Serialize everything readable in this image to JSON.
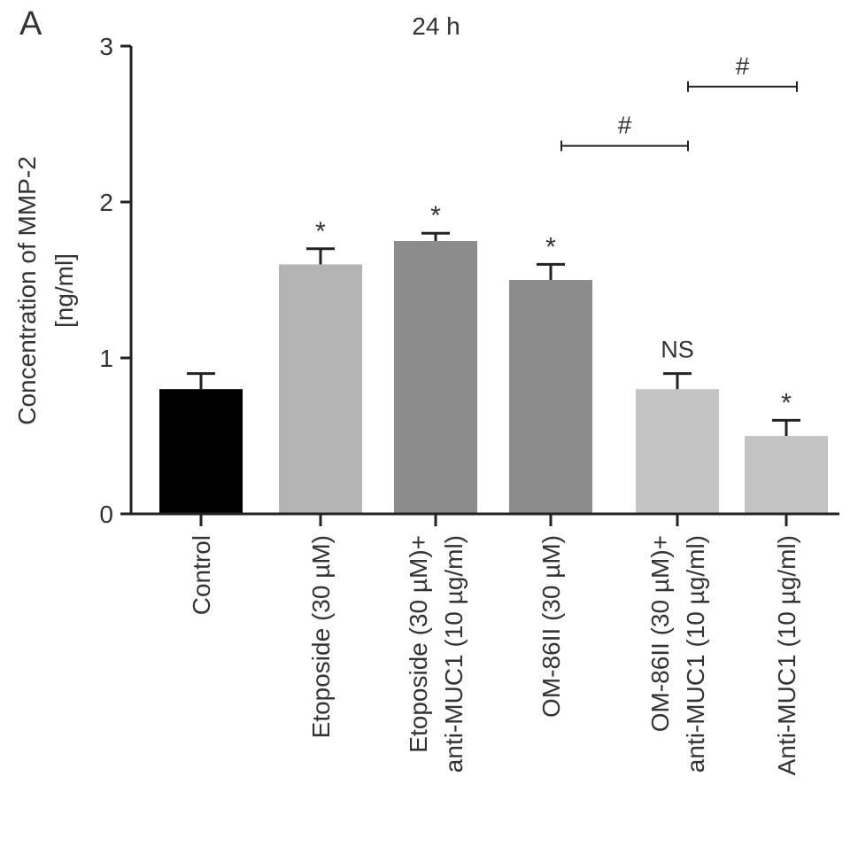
{
  "panel_label": "A",
  "chart_data": {
    "type": "bar",
    "title": "24 h",
    "ylabel_lines": [
      "Concentration of MMP-2",
      "[ng/ml]"
    ],
    "ylim": [
      0,
      3
    ],
    "yticks": [
      0,
      1,
      2,
      3
    ],
    "categories": [
      [
        "Control"
      ],
      [
        "Etoposide (30 µM)"
      ],
      [
        "Etoposide (30 µM)+",
        "anti-MUC1 (10 µg/ml)"
      ],
      [
        "OM-86II (30 µM)"
      ],
      [
        "OM-86II (30 µM)+",
        "anti-MUC1 (10 µg/ml)"
      ],
      [
        "Anti-MUC1 (10 µg/ml)"
      ]
    ],
    "values": [
      0.8,
      1.6,
      1.75,
      1.5,
      0.8,
      0.5
    ],
    "errors": [
      0.1,
      0.1,
      0.05,
      0.1,
      0.1,
      0.1
    ],
    "colors": [
      "#000000",
      "#b4b4b4",
      "#8c8c8c",
      "#8c8c8c",
      "#c4c4c4",
      "#c4c4c4"
    ],
    "annotations": [
      "",
      "*",
      "*",
      "*",
      "NS",
      "*"
    ],
    "comparisons": [
      {
        "from": 3,
        "to": 4,
        "y": 2.36,
        "label": "#"
      },
      {
        "from": 4,
        "to": 5,
        "y": 2.74,
        "label": "#"
      }
    ],
    "grid": false,
    "legend": "none"
  }
}
